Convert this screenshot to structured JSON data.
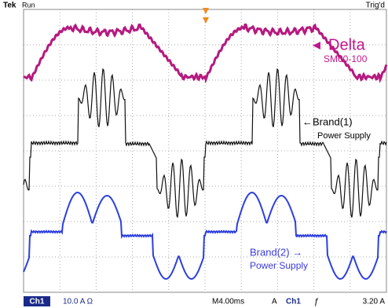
{
  "header": {
    "brand": "Tek",
    "status": "Run",
    "trigger": "Trig'd"
  },
  "labels": {
    "delta": "Delta",
    "delta_model": "SM60-100",
    "brand1": "←Brand(1)",
    "brand1_sub": "Power Supply",
    "brand2": "Brand(2) →",
    "brand2_sub": "Power Supply"
  },
  "footer": {
    "channel": "Ch1",
    "scale": "10.0 A Ω",
    "timebase": "M4.00ms",
    "mode": "A",
    "trigger_source": "Ch1",
    "slope": "ƒ",
    "trigger_level": "3.20 A"
  }
}
